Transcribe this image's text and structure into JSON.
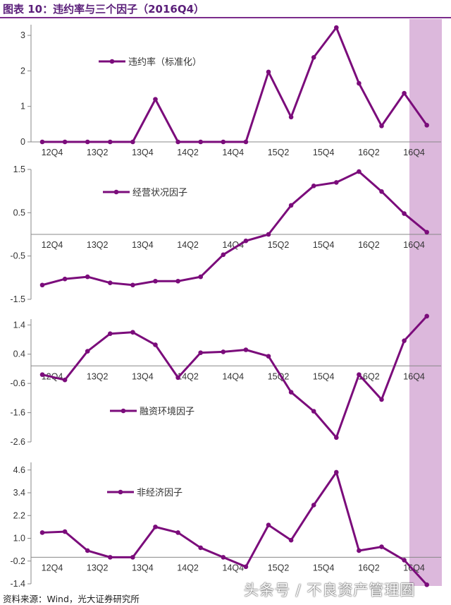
{
  "title": "图表 10：违约率与三个因子（2016Q4）",
  "source": "资料来源：Wind，光大证券研究所",
  "watermark": "头条号 / 不良资产管理圈",
  "colors": {
    "series": "#7b0c7b",
    "highlight": "#dcb8dc",
    "axis": "#888888",
    "title": "#5b1f7a"
  },
  "chart_data": [
    {
      "type": "line",
      "x": [
        "12Q4",
        "13Q1",
        "13Q2",
        "13Q3",
        "13Q4",
        "14Q1",
        "14Q2",
        "14Q3",
        "14Q4",
        "15Q1",
        "15Q2",
        "15Q3",
        "15Q4",
        "16Q1",
        "16Q2",
        "16Q3",
        "16Q4",
        "17Q1"
      ],
      "x_tick_labels": [
        "12Q4",
        "13Q2",
        "13Q4",
        "14Q2",
        "14Q4",
        "15Q2",
        "15Q4",
        "16Q2",
        "16Q4"
      ],
      "series": [
        {
          "name": "违约率（标准化）",
          "values": [
            0,
            0,
            0,
            0,
            0,
            1.2,
            0,
            0,
            0,
            0,
            1.97,
            0.7,
            2.38,
            3.22,
            1.65,
            0.45,
            1.37,
            0.47
          ]
        }
      ],
      "ylim": [
        0,
        3.3
      ],
      "y_ticks": [
        "0",
        "1",
        "2",
        "3"
      ],
      "legend": "upper-left"
    },
    {
      "type": "line",
      "x": [
        "12Q4",
        "13Q1",
        "13Q2",
        "13Q3",
        "13Q4",
        "14Q1",
        "14Q2",
        "14Q3",
        "14Q4",
        "15Q1",
        "15Q2",
        "15Q3",
        "15Q4",
        "16Q1",
        "16Q2",
        "16Q3",
        "16Q4",
        "17Q1"
      ],
      "x_tick_labels": [
        "12Q4",
        "13Q2",
        "13Q4",
        "14Q2",
        "14Q4",
        "15Q2",
        "15Q4",
        "16Q2",
        "16Q4"
      ],
      "series": [
        {
          "name": "经营状况因子",
          "values": [
            -1.17,
            -1.03,
            -0.98,
            -1.12,
            -1.17,
            -1.08,
            -1.08,
            -0.98,
            -0.47,
            -0.15,
            0.0,
            0.67,
            1.12,
            1.2,
            1.45,
            0.99,
            0.48,
            0.05
          ]
        }
      ],
      "ylim": [
        -1.5,
        1.5
      ],
      "y_ticks": [
        "-1.5",
        "-0.5",
        "0.5",
        "1.5"
      ],
      "legend": "upper-left"
    },
    {
      "type": "line",
      "x": [
        "12Q4",
        "13Q1",
        "13Q2",
        "13Q3",
        "13Q4",
        "14Q1",
        "14Q2",
        "14Q3",
        "14Q4",
        "15Q1",
        "15Q2",
        "15Q3",
        "15Q4",
        "16Q1",
        "16Q2",
        "16Q3",
        "16Q4",
        "17Q1"
      ],
      "x_tick_labels": [
        "12Q4",
        "13Q2",
        "13Q4",
        "14Q2",
        "14Q4",
        "15Q2",
        "15Q4",
        "16Q2",
        "16Q4"
      ],
      "series": [
        {
          "name": "融资环境因子",
          "values": [
            -0.3,
            -0.48,
            0.5,
            1.1,
            1.15,
            0.72,
            -0.4,
            0.45,
            0.48,
            0.55,
            0.33,
            -0.9,
            -1.55,
            -2.45,
            -0.3,
            -1.15,
            0.86,
            1.7
          ]
        }
      ],
      "ylim": [
        -2.6,
        1.6
      ],
      "y_ticks": [
        "-2.6",
        "-1.6",
        "-0.6",
        "0.4",
        "1.4"
      ],
      "legend": "lower-left"
    },
    {
      "type": "line",
      "x": [
        "12Q4",
        "13Q1",
        "13Q2",
        "13Q3",
        "13Q4",
        "14Q1",
        "14Q2",
        "14Q3",
        "14Q4",
        "15Q1",
        "15Q2",
        "15Q3",
        "15Q4",
        "16Q1",
        "16Q2",
        "16Q3",
        "16Q4",
        "17Q1"
      ],
      "x_tick_labels": [
        "12Q4",
        "13Q2",
        "13Q4",
        "14Q2",
        "14Q4",
        "15Q2",
        "15Q4",
        "16Q2",
        "16Q4"
      ],
      "series": [
        {
          "name": "非经济因子",
          "values": [
            1.3,
            1.35,
            0.35,
            0.0,
            0.0,
            1.6,
            1.3,
            0.5,
            0.0,
            -0.5,
            1.7,
            0.9,
            2.75,
            4.48,
            0.35,
            0.55,
            -0.15,
            -1.45
          ]
        }
      ],
      "ylim": [
        -1.4,
        5.0
      ],
      "y_ticks": [
        "-1.4",
        "-0.2",
        "1.0",
        "2.2",
        "3.4",
        "4.6"
      ],
      "legend": "upper-left"
    }
  ]
}
